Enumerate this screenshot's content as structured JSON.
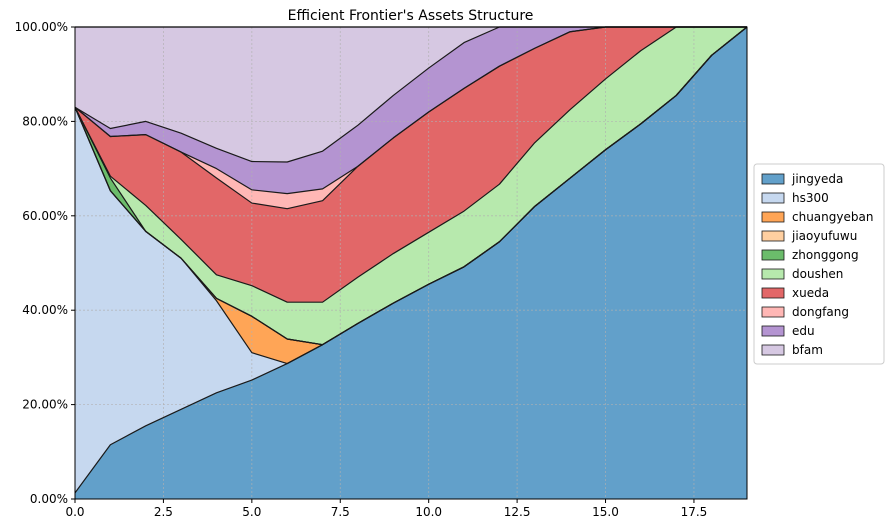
{
  "chart_data": {
    "type": "area",
    "title": "Efficient Frontier's Assets Structure",
    "xlabel": "",
    "ylabel": "",
    "xlim": [
      0,
      19
    ],
    "ylim": [
      0,
      1
    ],
    "stacked": true,
    "grid": true,
    "legend_position": "right",
    "x": [
      0,
      1,
      2,
      3,
      4,
      5,
      6,
      7,
      8,
      9,
      10,
      11,
      12,
      13,
      14,
      15,
      16,
      17,
      18,
      19
    ],
    "x_ticks": [
      0.0,
      2.5,
      5.0,
      7.5,
      10.0,
      12.5,
      15.0,
      17.5
    ],
    "x_tick_labels": [
      "0.0",
      "2.5",
      "5.0",
      "7.5",
      "10.0",
      "12.5",
      "15.0",
      "17.5"
    ],
    "y_ticks": [
      0,
      0.2,
      0.4,
      0.6,
      0.8,
      1.0
    ],
    "y_tick_labels": [
      "0.00%",
      "20.00%",
      "40.00%",
      "60.00%",
      "80.00%",
      "100.00%"
    ],
    "series": [
      {
        "name": "jingyeda",
        "color": "#1f77b4",
        "values": [
          0.013,
          0.115,
          0.155,
          0.19,
          0.225,
          0.252,
          0.287,
          0.327,
          0.372,
          0.415,
          0.455,
          0.492,
          0.545,
          0.62,
          0.68,
          0.74,
          0.795,
          0.855,
          0.94,
          1.0
        ]
      },
      {
        "name": "hs300",
        "color": "#aec7e8",
        "values": [
          0.817,
          0.538,
          0.412,
          0.32,
          0.195,
          0.058,
          0.0,
          0.0,
          0.0,
          0.0,
          0.0,
          0.0,
          0.0,
          0.0,
          0.0,
          0.0,
          0.0,
          0.0,
          0.0,
          0.0
        ]
      },
      {
        "name": "chuangyeban",
        "color": "#ff7f0e",
        "values": [
          0.0,
          0.0,
          0.0,
          0.0,
          0.005,
          0.077,
          0.052,
          0.0,
          0.0,
          0.0,
          0.0,
          0.0,
          0.0,
          0.0,
          0.0,
          0.0,
          0.0,
          0.0,
          0.0,
          0.0
        ]
      },
      {
        "name": "jiaoyufuwu",
        "color": "#ffbb78",
        "values": [
          0,
          0,
          0,
          0,
          0,
          0,
          0,
          0,
          0,
          0,
          0,
          0,
          0,
          0,
          0,
          0,
          0,
          0,
          0,
          0
        ]
      },
      {
        "name": "zhonggong",
        "color": "#2ca02c",
        "values": [
          0.0,
          0.027,
          0.0,
          0.0,
          0.0,
          0.0,
          0.0,
          0.0,
          0.0,
          0.0,
          0.0,
          0.0,
          0.0,
          0.0,
          0.0,
          0.0,
          0.0,
          0.0,
          0.0,
          0.0
        ]
      },
      {
        "name": "doushen",
        "color": "#98df8a",
        "values": [
          0.0,
          0.004,
          0.055,
          0.04,
          0.05,
          0.065,
          0.078,
          0.09,
          0.098,
          0.105,
          0.11,
          0.118,
          0.122,
          0.135,
          0.145,
          0.15,
          0.155,
          0.145,
          0.06,
          0.0
        ]
      },
      {
        "name": "xueda",
        "color": "#d62728",
        "values": [
          0.0,
          0.084,
          0.15,
          0.185,
          0.205,
          0.175,
          0.198,
          0.215,
          0.235,
          0.245,
          0.255,
          0.26,
          0.25,
          0.2,
          0.165,
          0.11,
          0.05,
          0.0,
          0.0,
          0.0
        ]
      },
      {
        "name": "dongfang",
        "color": "#ff9896",
        "values": [
          0.0,
          0.0,
          0.0,
          0.0,
          0.02,
          0.028,
          0.032,
          0.025,
          0.0,
          0.0,
          0.0,
          0.0,
          0.0,
          0.0,
          0.0,
          0.0,
          0.0,
          0.0,
          0.0,
          0.0
        ]
      },
      {
        "name": "edu",
        "color": "#9467bd",
        "values": [
          0.0,
          0.017,
          0.028,
          0.04,
          0.043,
          0.06,
          0.067,
          0.08,
          0.087,
          0.09,
          0.093,
          0.097,
          0.083,
          0.045,
          0.01,
          0.0,
          0.0,
          0.0,
          0.0,
          0.0
        ]
      },
      {
        "name": "bfam",
        "color": "#c5b0d5",
        "values": [
          0.17,
          0.215,
          0.2,
          0.225,
          0.257,
          0.285,
          0.286,
          0.263,
          0.208,
          0.145,
          0.087,
          0.033,
          0.0,
          0.0,
          0.0,
          0.0,
          0.0,
          0.0,
          0.0,
          0.0
        ]
      }
    ]
  }
}
